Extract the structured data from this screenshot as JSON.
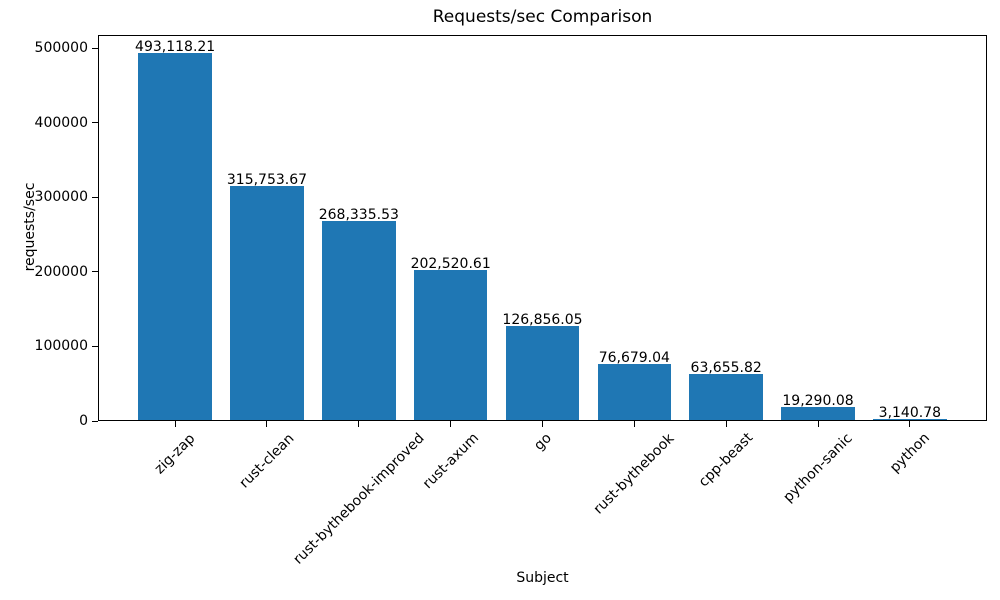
{
  "chart_data": {
    "type": "bar",
    "title": "Requests/sec Comparison",
    "xlabel": "Subject",
    "ylabel": "requests/sec",
    "categories": [
      "zig-zap",
      "rust-clean",
      "rust-bythebook-improved",
      "rust-axum",
      "go",
      "rust-bythebook",
      "cpp-beast",
      "python-sanic",
      "python"
    ],
    "values": [
      493118.21,
      315753.67,
      268335.53,
      202520.61,
      126856.05,
      76679.04,
      63655.82,
      19290.08,
      3140.78
    ],
    "bar_value_labels": [
      "493,118.21",
      "315,753.67",
      "268,335.53",
      "202,520.61",
      "126,856.05",
      "76,679.04",
      "63,655.82",
      "19,290.08",
      "3,140.78"
    ],
    "y_ticks": [
      0,
      100000,
      200000,
      300000,
      400000,
      500000
    ],
    "y_tick_labels": [
      "0",
      "100000",
      "200000",
      "300000",
      "400000",
      "500000"
    ],
    "ylim": [
      0,
      517774
    ],
    "xlim": [
      -0.84,
      8.84
    ],
    "bar_width": 0.8,
    "bar_color": "#1f77b4",
    "grid": false,
    "legend": null,
    "x_tick_rotation_deg": 45
  }
}
